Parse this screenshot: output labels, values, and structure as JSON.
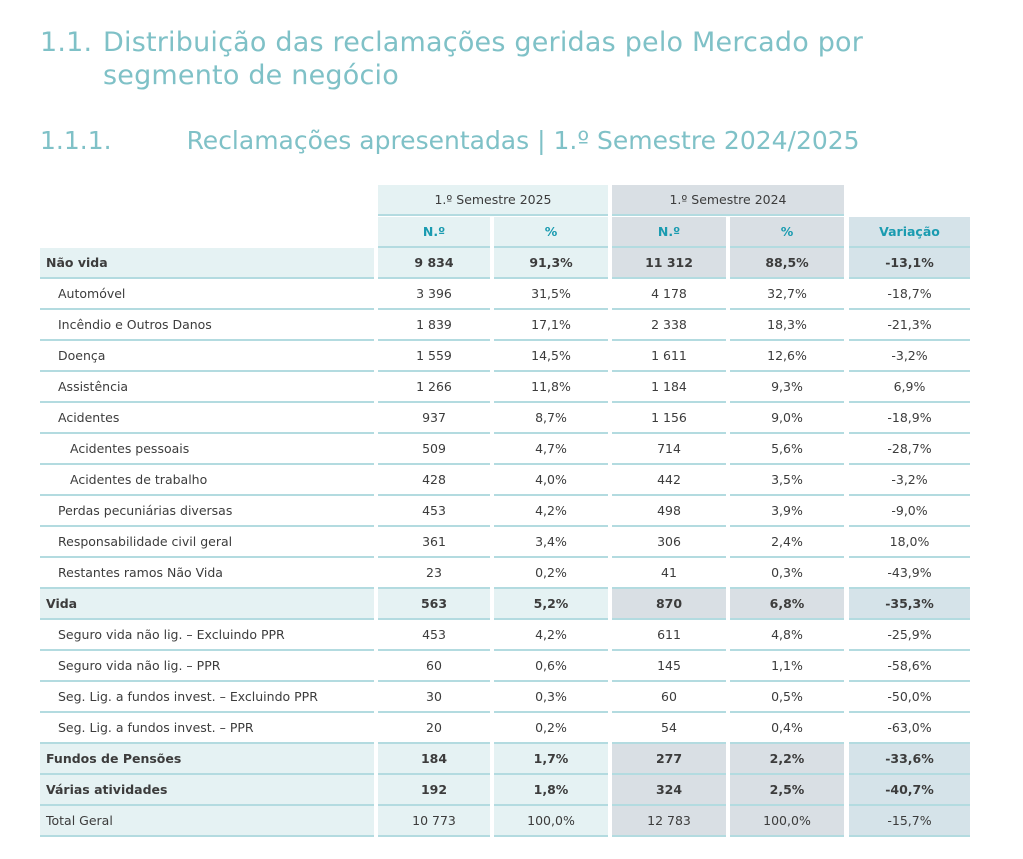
{
  "heading1": {
    "number": "1.1.",
    "text": "Distribuição das reclamações geridas pelo Mercado por segmento de negócio"
  },
  "heading2": {
    "number": "1.1.1.",
    "text": "Reclamações apresentadas | 1.º Semestre 2024/2025"
  },
  "table": {
    "group_headers": [
      "1.º Semestre 2025",
      "1.º Semestre 2024"
    ],
    "columns": [
      "N.º",
      "%",
      "N.º",
      "%",
      "Variação"
    ],
    "colors": {
      "sem2025": "#e5f2f3",
      "sem2024": "#d9dfe4",
      "variacao": "#d5e3e9",
      "accent": "#1a9bb0"
    },
    "rows": [
      {
        "level": 0,
        "label": "Não vida",
        "values": [
          "9 834",
          "91,3%",
          "11 312",
          "88,5%",
          "-13,1%"
        ]
      },
      {
        "level": 1,
        "label": "Automóvel",
        "values": [
          "3 396",
          "31,5%",
          "4 178",
          "32,7%",
          "-18,7%"
        ]
      },
      {
        "level": 1,
        "label": "Incêndio e Outros Danos",
        "values": [
          "1 839",
          "17,1%",
          "2 338",
          "18,3%",
          "-21,3%"
        ]
      },
      {
        "level": 1,
        "label": "Doença",
        "values": [
          "1 559",
          "14,5%",
          "1 611",
          "12,6%",
          "-3,2%"
        ]
      },
      {
        "level": 1,
        "label": "Assistência",
        "values": [
          "1 266",
          "11,8%",
          "1 184",
          "9,3%",
          "6,9%"
        ]
      },
      {
        "level": 1,
        "label": "Acidentes",
        "values": [
          "937",
          "8,7%",
          "1 156",
          "9,0%",
          "-18,9%"
        ]
      },
      {
        "level": 2,
        "label": "Acidentes pessoais",
        "values": [
          "509",
          "4,7%",
          "714",
          "5,6%",
          "-28,7%"
        ]
      },
      {
        "level": 2,
        "label": "Acidentes de trabalho",
        "values": [
          "428",
          "4,0%",
          "442",
          "3,5%",
          "-3,2%"
        ]
      },
      {
        "level": 1,
        "label": "Perdas pecuniárias diversas",
        "values": [
          "453",
          "4,2%",
          "498",
          "3,9%",
          "-9,0%"
        ]
      },
      {
        "level": 1,
        "label": "Responsabilidade civil geral",
        "values": [
          "361",
          "3,4%",
          "306",
          "2,4%",
          "18,0%"
        ]
      },
      {
        "level": 1,
        "label": "Restantes ramos Não Vida",
        "values": [
          "23",
          "0,2%",
          "41",
          "0,3%",
          "-43,9%"
        ]
      },
      {
        "level": 0,
        "label": "Vida",
        "values": [
          "563",
          "5,2%",
          "870",
          "6,8%",
          "-35,3%"
        ]
      },
      {
        "level": 1,
        "label": "Seguro vida não lig. – Excluindo PPR",
        "values": [
          "453",
          "4,2%",
          "611",
          "4,8%",
          "-25,9%"
        ]
      },
      {
        "level": 1,
        "label": "Seguro vida não lig. – PPR",
        "values": [
          "60",
          "0,6%",
          "145",
          "1,1%",
          "-58,6%"
        ]
      },
      {
        "level": 1,
        "label": "Seg. Lig. a fundos invest. – Excluindo PPR",
        "values": [
          "30",
          "0,3%",
          "60",
          "0,5%",
          "-50,0%"
        ]
      },
      {
        "level": 1,
        "label": "Seg. Lig. a fundos invest. – PPR",
        "values": [
          "20",
          "0,2%",
          "54",
          "0,4%",
          "-63,0%"
        ]
      },
      {
        "level": 0,
        "label": "Fundos de Pensões",
        "values": [
          "184",
          "1,7%",
          "277",
          "2,2%",
          "-33,6%"
        ]
      },
      {
        "level": 0,
        "label": "Várias atividades",
        "values": [
          "192",
          "1,8%",
          "324",
          "2,5%",
          "-40,7%"
        ]
      },
      {
        "level": 0,
        "label": "Total Geral",
        "values": [
          "10 773",
          "100,0%",
          "12 783",
          "100,0%",
          "-15,7%"
        ]
      }
    ]
  }
}
